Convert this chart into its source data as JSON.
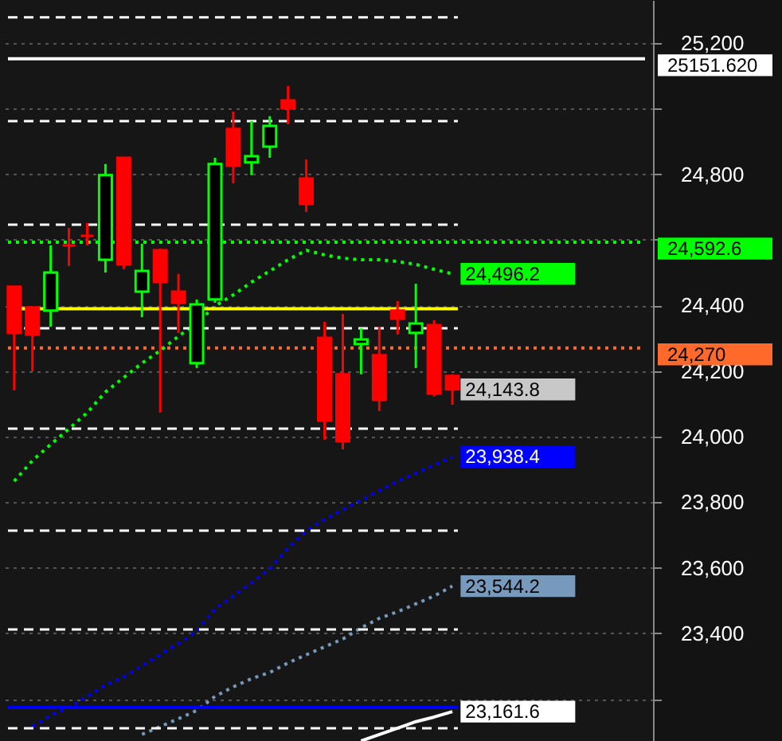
{
  "chart_data": {
    "type": "candlestick",
    "categories": [
      null,
      null,
      null,
      null,
      null,
      null,
      null,
      null,
      null,
      null,
      null,
      null,
      null,
      null,
      null,
      null,
      null,
      null,
      null,
      null,
      null,
      null,
      null,
      null,
      null
    ],
    "ohlc": [
      [
        24457,
        24457,
        24141,
        24316
      ],
      [
        24394,
        24394,
        24199,
        24311
      ],
      [
        24384,
        24583,
        24335,
        24500
      ],
      [
        24583,
        24636,
        24520,
        24583
      ],
      [
        24612,
        24651,
        24583,
        24612
      ],
      [
        24539,
        24831,
        24500,
        24797
      ],
      [
        24850,
        24850,
        24510,
        24525
      ],
      [
        24442,
        24588,
        24364,
        24505
      ],
      [
        24568,
        24573,
        24073,
        24471
      ],
      [
        24442,
        24496,
        24316,
        24408
      ],
      [
        24224,
        24418,
        24209,
        24403
      ],
      [
        24418,
        24850,
        24408,
        24831
      ],
      [
        24938,
        24991,
        24772,
        24826
      ],
      [
        24836,
        24962,
        24797,
        24855
      ],
      [
        24884,
        24977,
        24850,
        24947
      ],
      [
        25025,
        25069,
        24952,
        25001
      ],
      [
        24787,
        24845,
        24685,
        24709
      ],
      [
        24301,
        24350,
        23990,
        24049
      ],
      [
        24190,
        24374,
        23961,
        23986
      ],
      [
        24282,
        24330,
        24190,
        24296
      ],
      [
        24248,
        24335,
        24078,
        24112
      ],
      [
        24384,
        24413,
        24311,
        24360
      ],
      [
        24316,
        24466,
        24209,
        24345
      ],
      [
        24340,
        24355,
        24122,
        24131
      ],
      [
        24185,
        24190,
        24097,
        24143.8
      ]
    ],
    "value_labels": [
      null,
      null,
      null,
      null,
      null,
      null,
      null,
      null,
      null,
      null,
      null,
      null,
      null,
      null,
      null,
      null,
      null,
      null,
      null,
      null,
      null,
      null,
      null,
      null,
      "24,143.8"
    ],
    "colors": [
      "#ff0000",
      "#ff0000",
      "#00ff00",
      "#ff0000",
      "#ff0000",
      "#00ff00",
      "#ff0000",
      "#00ff00",
      "#ff0000",
      "#ff0000",
      "#00ff00",
      "#00ff00",
      "#ff0000",
      "#00ff00",
      "#00ff00",
      "#ff0000",
      "#ff0000",
      "#ff0000",
      "#ff0000",
      "#00ff00",
      "#ff0000",
      "#ff0000",
      "#00ff00",
      "#ff0000",
      "#ff0000"
    ],
    "series": [
      {
        "type": "line",
        "color": "#00ff00",
        "line_style": "dotted",
        "values": [
          23864,
          23927,
          23976,
          24024,
          24073,
          24136,
          24180,
          24224,
          24262,
          24306,
          24345,
          24398,
          24432,
          24471,
          24505,
          24539,
          24568,
          24554,
          24544,
          24539,
          24539,
          24534,
          24525,
          24510,
          24496.2
        ],
        "value_labels": [
          null,
          null,
          null,
          null,
          null,
          null,
          null,
          null,
          null,
          null,
          null,
          null,
          null,
          null,
          null,
          null,
          null,
          null,
          null,
          null,
          null,
          null,
          null,
          null,
          "24,496.2"
        ]
      },
      {
        "type": "line",
        "color": "#0000ff",
        "line_style": "dotted",
        "values": [
          null,
          23116,
          23150,
          23174,
          23208,
          23242,
          23267,
          23301,
          23335,
          23369,
          23407,
          23475,
          23514,
          23553,
          23597,
          23660,
          23713,
          23747,
          23777,
          23806,
          23835,
          23864,
          23888,
          23913,
          23938.4
        ],
        "value_labels": [
          null,
          null,
          null,
          null,
          null,
          null,
          null,
          null,
          null,
          null,
          null,
          null,
          null,
          null,
          null,
          null,
          null,
          null,
          null,
          null,
          null,
          null,
          null,
          null,
          "23,938.4"
        ]
      },
      {
        "type": "line",
        "color": "#7799bb",
        "line_style": "dotted",
        "values": [
          null,
          null,
          null,
          null,
          null,
          null,
          null,
          23092,
          23116,
          23140,
          23165,
          23208,
          23237,
          23262,
          23281,
          23310,
          23335,
          23359,
          23383,
          23417,
          23446,
          23466,
          23490,
          23514,
          23544.2
        ],
        "value_labels": [
          null,
          null,
          null,
          null,
          null,
          null,
          null,
          null,
          null,
          null,
          null,
          null,
          null,
          null,
          null,
          null,
          null,
          null,
          null,
          null,
          null,
          null,
          null,
          null,
          "23,544.2"
        ]
      },
      {
        "type": "line",
        "color": "#ffffff",
        "line_style": "solid",
        "values": [
          null,
          null,
          null,
          null,
          null,
          null,
          null,
          null,
          null,
          null,
          null,
          null,
          null,
          null,
          null,
          null,
          null,
          null,
          null,
          23072,
          23092,
          23111,
          23131,
          23145,
          23161.6
        ],
        "value_labels": [
          null,
          null,
          null,
          null,
          null,
          null,
          null,
          null,
          null,
          null,
          null,
          null,
          null,
          null,
          null,
          null,
          null,
          null,
          null,
          null,
          null,
          null,
          null,
          null,
          "23,161.6"
        ]
      }
    ],
    "ref_lines": [
      {
        "axis": "y",
        "value": 25151.62,
        "label": "25151.620",
        "color": "#ffffff",
        "line_style": "solid"
      },
      {
        "axis": "y",
        "value": 24592.6,
        "label": "24,592.6",
        "color": "#00ff00",
        "line_style": "dotted"
      },
      {
        "axis": "y",
        "value": 24390,
        "color": "#ffff00",
        "line_style": "solid"
      },
      {
        "axis": "y",
        "value": 24270,
        "label": "24,270",
        "color": "#ff6a2a",
        "line_style": "dotted"
      },
      {
        "axis": "y",
        "value": 23174,
        "color": "#0000ff",
        "line_style": "solid"
      },
      {
        "axis": "y",
        "value": 25278,
        "color": "#ffffff",
        "line_style": "dashed"
      },
      {
        "axis": "y",
        "value": 24962,
        "color": "#ffffff",
        "line_style": "dashed"
      },
      {
        "axis": "y",
        "value": 24646,
        "color": "#ffffff",
        "line_style": "dashed"
      },
      {
        "axis": "y",
        "value": 24330,
        "color": "#ffffff",
        "line_style": "dashed"
      },
      {
        "axis": "y",
        "value": 24024,
        "color": "#ffffff",
        "line_style": "dashed"
      },
      {
        "axis": "y",
        "value": 23713,
        "color": "#ffffff",
        "line_style": "dashed"
      },
      {
        "axis": "y",
        "value": 23412,
        "color": "#ffffff",
        "line_style": "dashed"
      },
      {
        "axis": "y",
        "value": 23111,
        "color": "#ffffff",
        "line_style": "dashed"
      }
    ],
    "ylim": [
      23072,
      25331
    ],
    "yticks": [
      {
        "value": 23200,
        "label": null
      },
      {
        "value": 23400,
        "label": "23,400"
      },
      {
        "value": 23600,
        "label": "23,600"
      },
      {
        "value": 23800,
        "label": "23,800"
      },
      {
        "value": 24000,
        "label": "24,000"
      },
      {
        "value": 24200,
        "label": "24,200"
      },
      {
        "value": 24400,
        "label": "24,400"
      },
      {
        "value": 24600,
        "label": null
      },
      {
        "value": 24800,
        "label": "24,800"
      },
      {
        "value": 25000,
        "label": null
      },
      {
        "value": 25200,
        "label": "25,200"
      }
    ],
    "grid": "y",
    "tick_labels": "y"
  }
}
